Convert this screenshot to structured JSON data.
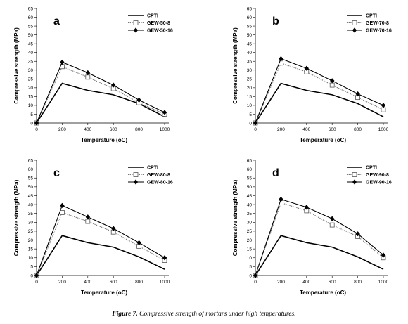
{
  "caption": {
    "label": "Figure 7.",
    "text": "Compressive strength of mortars under high temperatures."
  },
  "chart_data": [
    {
      "type": "line",
      "panel": "a",
      "x": [
        0,
        200,
        400,
        600,
        800,
        1000
      ],
      "xlabel": "Temperature (oC)",
      "ylabel": "Compressive strength (MPa)",
      "xlim": [
        0,
        1000
      ],
      "ylim": [
        0,
        65
      ],
      "xticks": [
        0,
        200,
        400,
        600,
        800,
        1000
      ],
      "yticks": [
        0,
        5,
        10,
        15,
        20,
        25,
        30,
        35,
        40,
        45,
        50,
        55,
        60,
        65
      ],
      "grid": false,
      "legend_position": "top-right",
      "series": [
        {
          "name": "CPTI",
          "marker": "none",
          "style": "solid",
          "values": [
            0,
            22.5,
            18.5,
            16,
            11,
            3.5
          ]
        },
        {
          "name": "GEW-50-8",
          "marker": "square-open",
          "style": "dotted",
          "values": [
            0,
            32,
            26,
            19.5,
            11.5,
            5
          ]
        },
        {
          "name": "GEW-50-16",
          "marker": "diamond-filled",
          "style": "solid",
          "values": [
            0,
            34.5,
            28.5,
            21.5,
            13,
            6
          ]
        }
      ]
    },
    {
      "type": "line",
      "panel": "b",
      "x": [
        0,
        200,
        400,
        600,
        800,
        1000
      ],
      "xlabel": "Temperature (oC)",
      "ylabel": "Compressive strength (MPa)",
      "xlim": [
        0,
        1000
      ],
      "ylim": [
        0,
        65
      ],
      "xticks": [
        0,
        200,
        400,
        600,
        800,
        1000
      ],
      "yticks": [
        0,
        5,
        10,
        15,
        20,
        25,
        30,
        35,
        40,
        45,
        50,
        55,
        60,
        65
      ],
      "grid": false,
      "legend_position": "top-right",
      "series": [
        {
          "name": "CPTI",
          "marker": "none",
          "style": "solid",
          "values": [
            0,
            22.5,
            18.5,
            16,
            11,
            3.5
          ]
        },
        {
          "name": "GEW-70-8",
          "marker": "square-open",
          "style": "dotted",
          "values": [
            0,
            34,
            29,
            21.5,
            14.5,
            7.5
          ]
        },
        {
          "name": "GEW-70-16",
          "marker": "diamond-filled",
          "style": "solid",
          "values": [
            0,
            36.5,
            31,
            24,
            16.5,
            10
          ]
        }
      ]
    },
    {
      "type": "line",
      "panel": "c",
      "x": [
        0,
        200,
        400,
        600,
        800,
        1000
      ],
      "xlabel": "Temperature (oC)",
      "ylabel": "Compressive strength (MPa)",
      "xlim": [
        0,
        1000
      ],
      "ylim": [
        0,
        65
      ],
      "xticks": [
        0,
        200,
        400,
        600,
        800,
        1000
      ],
      "yticks": [
        0,
        5,
        10,
        15,
        20,
        25,
        30,
        35,
        40,
        45,
        50,
        55,
        60,
        65
      ],
      "grid": false,
      "legend_position": "top-right",
      "series": [
        {
          "name": "CPTI",
          "marker": "none",
          "style": "solid",
          "values": [
            0,
            22.5,
            18.5,
            16,
            10.5,
            3.5
          ]
        },
        {
          "name": "GEW-80-8",
          "marker": "square-open",
          "style": "dotted",
          "values": [
            0,
            35.5,
            30.5,
            24.5,
            16.5,
            8.5
          ]
        },
        {
          "name": "GEW-80-16",
          "marker": "diamond-filled",
          "style": "solid",
          "values": [
            0,
            39.5,
            33,
            26.5,
            18.5,
            10
          ]
        }
      ]
    },
    {
      "type": "line",
      "panel": "d",
      "x": [
        0,
        200,
        400,
        600,
        800,
        1000
      ],
      "xlabel": "Temperature (oC)",
      "ylabel": "Compressive strength (MPa)",
      "xlim": [
        0,
        1000
      ],
      "ylim": [
        0,
        65
      ],
      "xticks": [
        0,
        200,
        400,
        600,
        800,
        1000
      ],
      "yticks": [
        0,
        5,
        10,
        15,
        20,
        25,
        30,
        35,
        40,
        45,
        50,
        55,
        60,
        65
      ],
      "grid": false,
      "legend_position": "top-right",
      "series": [
        {
          "name": "CPTI",
          "marker": "none",
          "style": "solid",
          "values": [
            0,
            22.5,
            18.5,
            16,
            10.5,
            3.5
          ]
        },
        {
          "name": "GEW-90-8",
          "marker": "square-open",
          "style": "dotted",
          "values": [
            0,
            41,
            36.5,
            28.5,
            22,
            10
          ]
        },
        {
          "name": "GEW-90-16",
          "marker": "diamond-filled",
          "style": "solid",
          "values": [
            0,
            43,
            38.5,
            32,
            23.5,
            11.5
          ]
        }
      ]
    }
  ]
}
